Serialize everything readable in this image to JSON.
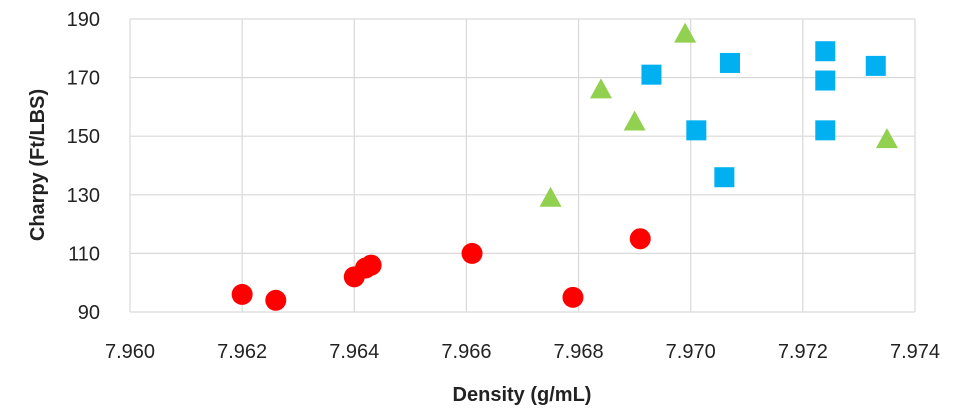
{
  "chart_data": {
    "type": "scatter",
    "title": "",
    "xlabel": "Density (g/mL)",
    "ylabel": "Charpy (Ft/LBS)",
    "xlim": [
      7.96,
      7.974
    ],
    "ylim": [
      90,
      190
    ],
    "x_ticks": [
      "7.960",
      "7.962",
      "7.964",
      "7.966",
      "7.968",
      "7.970",
      "7.972",
      "7.974"
    ],
    "y_ticks": [
      "90",
      "110",
      "130",
      "150",
      "170",
      "190"
    ],
    "grid": true,
    "legend": "none",
    "series": [
      {
        "marker": "circle",
        "color": "#ff0000",
        "points": [
          [
            7.962,
            96
          ],
          [
            7.9626,
            94
          ],
          [
            7.964,
            102
          ],
          [
            7.9642,
            105
          ],
          [
            7.9643,
            106
          ],
          [
            7.9661,
            110
          ],
          [
            7.9679,
            95
          ],
          [
            7.9691,
            115
          ]
        ]
      },
      {
        "marker": "triangle",
        "color": "#92d050",
        "points": [
          [
            7.9675,
            129
          ],
          [
            7.9684,
            166
          ],
          [
            7.969,
            155
          ],
          [
            7.9699,
            185
          ],
          [
            7.9735,
            149
          ]
        ]
      },
      {
        "marker": "square",
        "color": "#00b0f0",
        "points": [
          [
            7.9693,
            171
          ],
          [
            7.9701,
            152
          ],
          [
            7.9706,
            136
          ],
          [
            7.9707,
            175
          ],
          [
            7.9724,
            179
          ],
          [
            7.9724,
            152
          ],
          [
            7.9724,
            169
          ],
          [
            7.9733,
            174
          ]
        ]
      }
    ]
  }
}
